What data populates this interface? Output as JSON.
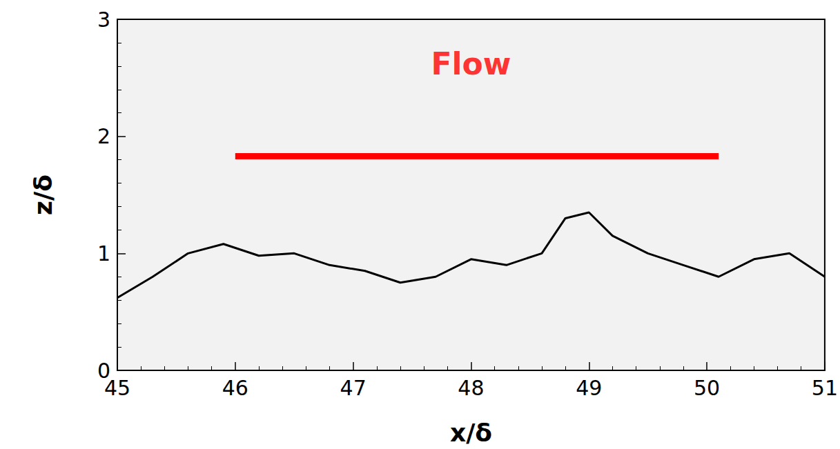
{
  "chart_data": {
    "type": "line",
    "xlabel": "x/δ",
    "ylabel": "z/δ",
    "x": [
      45,
      45.3,
      45.6,
      45.9,
      46.2,
      46.5,
      46.8,
      47.1,
      47.4,
      47.7,
      48.0,
      48.3,
      48.6,
      48.8,
      49.0,
      49.2,
      49.5,
      49.8,
      50.1,
      50.4,
      50.7,
      51
    ],
    "values": [
      0.62,
      0.8,
      1.0,
      1.08,
      0.98,
      1.0,
      0.9,
      0.85,
      0.75,
      0.8,
      0.95,
      0.9,
      1.0,
      1.3,
      1.35,
      1.15,
      1.0,
      0.9,
      0.8,
      0.95,
      1.0,
      0.8
    ],
    "color": "#000000",
    "xlim": [
      45,
      51
    ],
    "xticks": [
      45,
      46,
      47,
      48,
      49,
      50,
      51
    ],
    "ylim": [
      0,
      3
    ],
    "yticks": [
      0,
      1,
      2,
      3
    ],
    "grid": false,
    "annotations": [
      {
        "text": "Flow",
        "x": 48.0,
        "y": 2.62,
        "color": "#ff0000",
        "arrow": {
          "from": [
            46.0,
            1.83
          ],
          "to": [
            50.1,
            1.83
          ]
        }
      }
    ]
  }
}
